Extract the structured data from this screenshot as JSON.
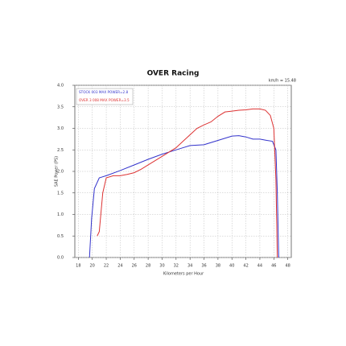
{
  "chart_data": {
    "type": "line",
    "title": "OVER Racing",
    "annotation": "km/h = 15.48",
    "x_label": "Kilometers per Hour",
    "y_label": "SAE Power (PS)",
    "xlim": [
      17.5,
      48.5
    ],
    "ylim": [
      0,
      4
    ],
    "xticks": [
      18,
      20,
      22,
      24,
      26,
      28,
      30,
      32,
      34,
      36,
      38,
      40,
      42,
      44,
      46,
      48
    ],
    "yticks": [
      {
        "value": 0,
        "label": "0.0"
      },
      {
        "value": 0.5,
        "label": "0.5"
      },
      {
        "value": 1,
        "label": "1.0"
      },
      {
        "value": 1.5,
        "label": "1.5"
      },
      {
        "value": 2,
        "label": "2.0"
      },
      {
        "value": 2.5,
        "label": "2.5"
      },
      {
        "value": 3,
        "label": "3.0"
      },
      {
        "value": 3.5,
        "label": "3.5"
      },
      {
        "value": 4,
        "label": "4.0"
      }
    ],
    "grid": true,
    "legend": "top-left",
    "series": [
      {
        "name": "STOCK 003 MAX POWER=2.8",
        "color": "#3333cc",
        "x": [
          19.6,
          19.9,
          20.3,
          21,
          22,
          24,
          26,
          28,
          30,
          31,
          33,
          34,
          36,
          38,
          40,
          41,
          42,
          43,
          44,
          45,
          45.8,
          46.3,
          46.5,
          46.7
        ],
        "values": [
          0,
          0.9,
          1.6,
          1.85,
          1.9,
          2.02,
          2.15,
          2.28,
          2.4,
          2.45,
          2.55,
          2.6,
          2.62,
          2.72,
          2.82,
          2.83,
          2.8,
          2.75,
          2.75,
          2.72,
          2.7,
          2.5,
          1.5,
          0
        ]
      },
      {
        "name": "OVER 3 008 MAX POWER=3.5",
        "color": "#dd3333",
        "x": [
          20.7,
          21,
          21.5,
          22,
          23,
          24,
          25,
          26,
          27,
          28,
          30,
          32,
          33,
          34,
          35,
          36,
          37,
          38,
          39,
          40,
          41,
          42,
          43,
          44,
          44.8,
          45.5,
          46,
          46.3,
          46.5
        ],
        "values": [
          0.5,
          0.6,
          1.5,
          1.85,
          1.9,
          1.9,
          1.93,
          1.97,
          2.05,
          2.15,
          2.35,
          2.55,
          2.7,
          2.85,
          3.0,
          3.08,
          3.15,
          3.28,
          3.38,
          3.4,
          3.42,
          3.43,
          3.45,
          3.45,
          3.42,
          3.3,
          3.0,
          1.8,
          0
        ]
      }
    ]
  }
}
